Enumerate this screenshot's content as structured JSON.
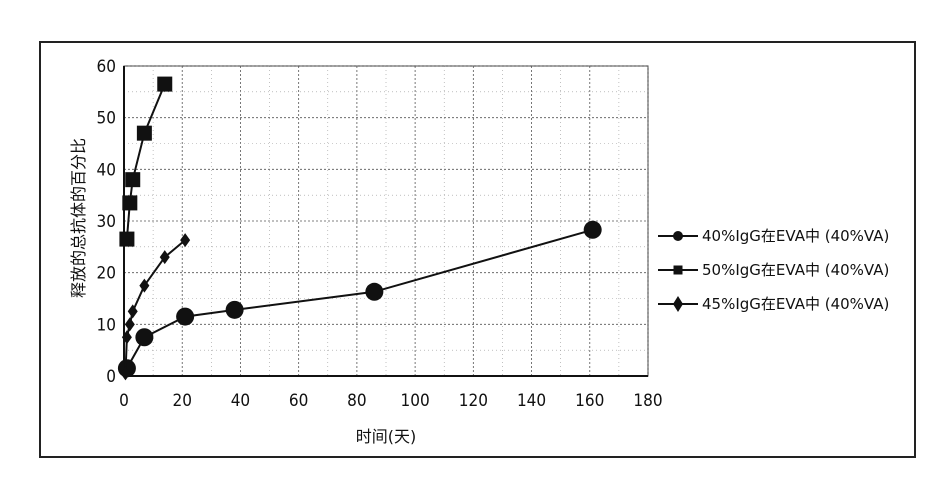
{
  "chart_data": {
    "type": "line",
    "title": "",
    "xlabel": "时间(天)",
    "ylabel": "释放的总抗体的百分比",
    "xlim": [
      0,
      180
    ],
    "ylim": [
      0,
      60
    ],
    "xticks": [
      0,
      20,
      40,
      60,
      80,
      100,
      120,
      140,
      160,
      180
    ],
    "yticks": [
      0,
      10,
      20,
      30,
      40,
      50,
      60
    ],
    "grid": true,
    "legend_position": "right",
    "series": [
      {
        "name": "40%IgG在EVA中 (40%VA)",
        "marker": "circle",
        "x": [
          1,
          7,
          21,
          38,
          86,
          161
        ],
        "y": [
          1.5,
          7.5,
          11.5,
          12.8,
          16.3,
          28.3
        ]
      },
      {
        "name": "50%IgG在EVA中 (40%VA)",
        "marker": "square",
        "x": [
          1,
          2,
          3,
          7,
          14
        ],
        "y": [
          26.5,
          33.5,
          38,
          47,
          56.5
        ]
      },
      {
        "name": "45%IgG在EVA中 (40%VA)",
        "marker": "diamond",
        "x": [
          0.5,
          1,
          2,
          3,
          7,
          14,
          21
        ],
        "y": [
          0.5,
          7.5,
          10,
          12.5,
          17.5,
          23,
          26.3
        ]
      }
    ]
  }
}
